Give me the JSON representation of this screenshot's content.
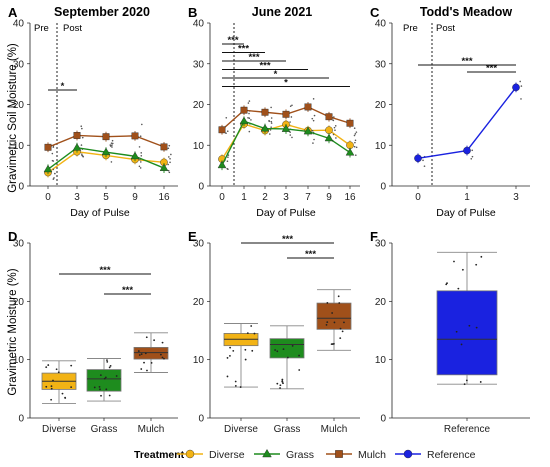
{
  "figure": {
    "shared_ylabel_top": "Gravimetric Soil Moisture (%)",
    "shared_ylabel_bottom": "Gravimetric Moisture (%)",
    "shared_xlabel_top": "Day of Pulse",
    "pre_label": "Pre",
    "post_label": "Post"
  },
  "colors": {
    "diverse": "#F2B315",
    "grass": "#1E8C1E",
    "mulch": "#A0501A",
    "reference": "#1A22E0"
  },
  "legend": {
    "title": "Treatment",
    "items": [
      {
        "name": "Diverse",
        "color": "#F2B315",
        "marker": "circle"
      },
      {
        "name": "Grass",
        "color": "#1E8C1E",
        "marker": "triangle"
      },
      {
        "name": "Mulch",
        "color": "#A0501A",
        "marker": "square"
      },
      {
        "name": "Reference",
        "color": "#1A22E0",
        "marker": "circle"
      }
    ]
  },
  "chart_data": [
    {
      "panel": "A",
      "type": "line",
      "title": "September 2020",
      "xlabel": "Day of Pulse",
      "ylabel": "Gravimetric Soil Moisture (%)",
      "ylim": [
        0,
        40
      ],
      "yticks": [
        0,
        10,
        20,
        30,
        40
      ],
      "categories": [
        "0",
        "3",
        "5",
        "9",
        "16"
      ],
      "series": [
        {
          "name": "Mulch",
          "values": [
            9.5,
            12.4,
            12.1,
            12.3,
            9.6
          ]
        },
        {
          "name": "Diverse",
          "values": [
            3.3,
            8.4,
            7.5,
            6.5,
            5.8
          ]
        },
        {
          "name": "Grass",
          "values": [
            4.1,
            9.4,
            8.3,
            7.3,
            4.4
          ]
        }
      ],
      "significance": [
        {
          "from": 0,
          "to": 1,
          "label": "*"
        }
      ]
    },
    {
      "panel": "B",
      "type": "line",
      "title": "June 2021",
      "xlabel": "Day of Pulse",
      "ylabel": "",
      "ylim": [
        0,
        40
      ],
      "yticks": [
        0,
        10,
        20,
        30,
        40
      ],
      "categories": [
        "0",
        "1",
        "2",
        "3",
        "7",
        "9",
        "16"
      ],
      "series": [
        {
          "name": "Mulch",
          "values": [
            13.8,
            18.6,
            18.1,
            17.6,
            19.4,
            17.0,
            15.4
          ]
        },
        {
          "name": "Diverse",
          "values": [
            6.6,
            15.2,
            13.6,
            15.1,
            13.6,
            13.7,
            10.0
          ]
        },
        {
          "name": "Grass",
          "values": [
            5.1,
            15.9,
            14.1,
            14.0,
            13.4,
            11.7,
            8.2
          ]
        }
      ],
      "significance": [
        {
          "from": 0,
          "to": 1,
          "label": "***"
        },
        {
          "from": 0,
          "to": 2,
          "label": "***"
        },
        {
          "from": 0,
          "to": 3,
          "label": "***"
        },
        {
          "from": 0,
          "to": 4,
          "label": "***"
        },
        {
          "from": 0,
          "to": 5,
          "label": "*"
        },
        {
          "from": 0,
          "to": 6,
          "label": "*"
        }
      ]
    },
    {
      "panel": "C",
      "type": "line",
      "title": "Todd's Meadow",
      "xlabel": "Day of Pulse",
      "ylabel": "",
      "ylim": [
        0,
        40
      ],
      "yticks": [
        0,
        10,
        20,
        30,
        40
      ],
      "categories": [
        "0",
        "1",
        "3"
      ],
      "series": [
        {
          "name": "Reference",
          "values": [
            6.8,
            8.7,
            24.2
          ]
        }
      ],
      "significance": [
        {
          "from": 0,
          "to": 2,
          "label": "***"
        },
        {
          "from": 1,
          "to": 2,
          "label": "***"
        }
      ]
    },
    {
      "panel": "D",
      "type": "box",
      "title": "",
      "xlabel": "",
      "ylabel": "Gravimetric Moisture (%)",
      "ylim": [
        0,
        30
      ],
      "yticks": [
        0,
        10,
        20,
        30
      ],
      "categories": [
        "Diverse",
        "Grass",
        "Mulch"
      ],
      "boxes": [
        {
          "name": "Diverse",
          "min": 2.5,
          "q1": 4.9,
          "median": 6.3,
          "q3": 7.7,
          "max": 9.8
        },
        {
          "name": "Grass",
          "min": 2.9,
          "q1": 4.6,
          "median": 6.7,
          "q3": 8.3,
          "max": 10.2
        },
        {
          "name": "Mulch",
          "min": 7.8,
          "q1": 10.1,
          "median": 11.2,
          "q3": 12.1,
          "max": 14.6
        }
      ],
      "significance": [
        {
          "from": 0,
          "to": 2,
          "label": "***"
        },
        {
          "from": 1,
          "to": 2,
          "label": "***"
        }
      ]
    },
    {
      "panel": "E",
      "type": "box",
      "title": "",
      "xlabel": "",
      "ylabel": "",
      "ylim": [
        0,
        30
      ],
      "yticks": [
        0,
        10,
        20,
        30
      ],
      "categories": [
        "Diverse",
        "Grass",
        "Mulch"
      ],
      "boxes": [
        {
          "name": "Diverse",
          "min": 5.3,
          "q1": 12.4,
          "median": 13.5,
          "q3": 14.5,
          "max": 16.2
        },
        {
          "name": "Grass",
          "min": 5.0,
          "q1": 10.3,
          "median": 12.6,
          "q3": 13.6,
          "max": 15.8
        },
        {
          "name": "Mulch",
          "min": 11.6,
          "q1": 15.2,
          "median": 17.1,
          "q3": 19.7,
          "max": 22.0
        }
      ],
      "significance": [
        {
          "from": 0,
          "to": 2,
          "label": "***"
        },
        {
          "from": 1,
          "to": 2,
          "label": "***"
        }
      ]
    },
    {
      "panel": "F",
      "type": "box",
      "title": "",
      "xlabel": "",
      "ylabel": "",
      "ylim": [
        0,
        30
      ],
      "yticks": [
        0,
        10,
        20,
        30
      ],
      "categories": [
        "Reference"
      ],
      "boxes": [
        {
          "name": "Reference",
          "min": 5.8,
          "q1": 7.4,
          "median": 13.5,
          "q3": 21.8,
          "max": 28.4
        }
      ],
      "significance": []
    }
  ]
}
